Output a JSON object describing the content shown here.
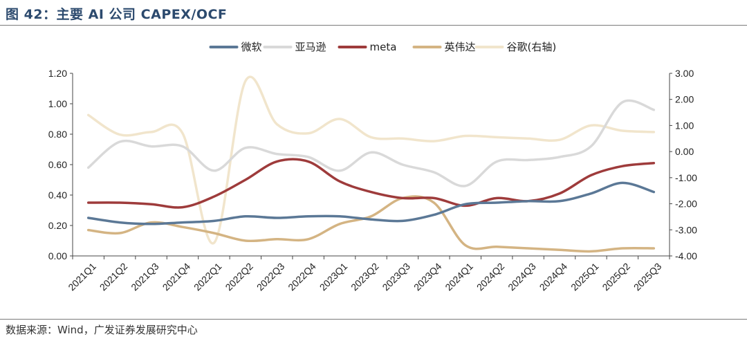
{
  "header": {
    "title": "图 42：主要 AI 公司 CAPEX/OCF"
  },
  "footer": {
    "source": "数据来源：Wind，广发证券发展研究中心"
  },
  "chart_data": {
    "type": "line",
    "title": "主要 AI 公司 CAPEX/OCF",
    "categories": [
      "2021Q1",
      "2021Q2",
      "2021Q3",
      "2021Q4",
      "2022Q1",
      "2022Q2",
      "2022Q3",
      "2022Q4",
      "2023Q1",
      "2023Q2",
      "2023Q3",
      "2023Q4",
      "2024Q1",
      "2024Q2",
      "2024Q3",
      "2024Q4",
      "2025Q1",
      "2025Q2",
      "2025Q3"
    ],
    "y_left": {
      "min": 0,
      "max": 1.2,
      "ticks": [
        "0.00",
        "0.20",
        "0.40",
        "0.60",
        "0.80",
        "1.00",
        "1.20"
      ]
    },
    "y_right": {
      "min": -4,
      "max": 3,
      "ticks": [
        "-4.00",
        "-3.00",
        "-2.00",
        "-1.00",
        "0.00",
        "1.00",
        "2.00",
        "3.00"
      ]
    },
    "legend_position": "top",
    "series": [
      {
        "name": "微软",
        "axis": "left",
        "color": "#5b7896",
        "values": [
          0.25,
          0.22,
          0.21,
          0.22,
          0.23,
          0.26,
          0.25,
          0.26,
          0.26,
          0.24,
          0.23,
          0.27,
          0.34,
          0.35,
          0.36,
          0.36,
          0.41,
          0.48,
          0.42
        ]
      },
      {
        "name": "亚马逊",
        "axis": "left",
        "color": "#d9d9d9",
        "values": [
          0.58,
          0.75,
          0.72,
          0.72,
          0.56,
          0.71,
          0.67,
          0.65,
          0.56,
          0.68,
          0.6,
          0.55,
          0.46,
          0.62,
          0.63,
          0.65,
          0.72,
          1.01,
          0.96
        ]
      },
      {
        "name": "meta",
        "axis": "left",
        "color": "#9e3b3b",
        "values": [
          0.35,
          0.35,
          0.34,
          0.32,
          0.39,
          0.5,
          0.62,
          0.62,
          0.49,
          0.42,
          0.38,
          0.38,
          0.33,
          0.38,
          0.36,
          0.41,
          0.53,
          0.59,
          0.61
        ]
      },
      {
        "name": "英伟达",
        "axis": "left",
        "color": "#d4b483",
        "values": [
          0.17,
          0.15,
          0.22,
          0.19,
          0.15,
          0.1,
          0.11,
          0.11,
          0.21,
          0.26,
          0.38,
          0.35,
          0.07,
          0.06,
          0.05,
          0.04,
          0.03,
          0.05,
          0.05
        ]
      },
      {
        "name": "谷歌(右轴)",
        "axis": "right",
        "color": "#f1e5cc",
        "values": [
          1.4,
          0.65,
          0.75,
          0.7,
          -3.5,
          2.7,
          1.05,
          0.7,
          1.25,
          0.55,
          0.5,
          0.4,
          0.6,
          0.55,
          0.5,
          0.45,
          1.0,
          0.8,
          0.75
        ]
      }
    ]
  }
}
